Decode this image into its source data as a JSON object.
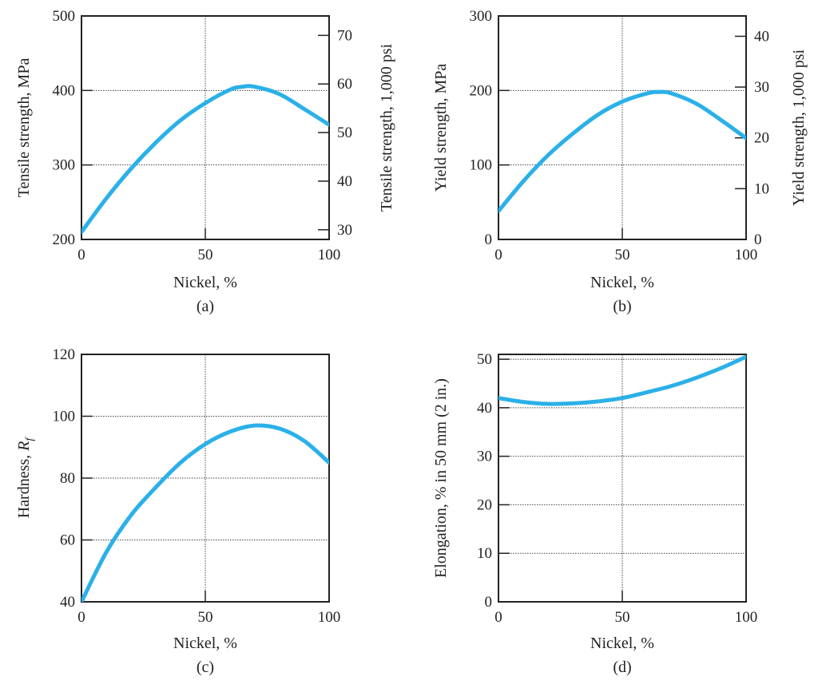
{
  "chart_data": [
    {
      "type": "line",
      "caption": "(a)",
      "xlabel": "Nickel, %",
      "ylabel": "Tensile strength, MPa",
      "y2label": "Tensile strength, 1,000 psi",
      "xlim": [
        0,
        100
      ],
      "ylim": [
        200,
        500
      ],
      "y2lim": [
        28,
        74
      ],
      "xticks": [
        0,
        50,
        100
      ],
      "yticks": [
        200,
        300,
        400,
        500
      ],
      "y2ticks": [
        30,
        40,
        50,
        60,
        70
      ],
      "grid": true,
      "color": "#2bb0e8",
      "series": [
        {
          "x": [
            0,
            10,
            20,
            30,
            40,
            50,
            60,
            65,
            70,
            80,
            90,
            100
          ],
          "y": [
            210,
            255,
            295,
            330,
            360,
            383,
            401,
            405,
            405,
            395,
            375,
            354
          ]
        }
      ]
    },
    {
      "type": "line",
      "caption": "(b)",
      "xlabel": "Nickel, %",
      "ylabel": "Yield strength, MPa",
      "y2label": "Yield strength, 1,000 psi",
      "xlim": [
        0,
        100
      ],
      "ylim": [
        0,
        300
      ],
      "y2lim": [
        0,
        44
      ],
      "xticks": [
        0,
        50,
        100
      ],
      "yticks": [
        0,
        100,
        200,
        300
      ],
      "y2ticks": [
        0,
        10,
        20,
        30,
        40
      ],
      "grid": true,
      "color": "#2bb0e8",
      "series": [
        {
          "x": [
            0,
            10,
            20,
            30,
            40,
            50,
            60,
            65,
            70,
            80,
            90,
            100
          ],
          "y": [
            38,
            78,
            113,
            142,
            167,
            185,
            196,
            198,
            196,
            182,
            160,
            136
          ]
        }
      ]
    },
    {
      "type": "line",
      "caption": "(c)",
      "xlabel": "Nickel, %",
      "ylabel_main": "Hardness, ",
      "ylabel_symbol": "R",
      "ylabel_sub": "f",
      "xlim": [
        0,
        100
      ],
      "ylim": [
        40,
        120
      ],
      "xticks": [
        0,
        50,
        100
      ],
      "yticks": [
        40,
        60,
        80,
        100,
        120
      ],
      "grid": true,
      "color": "#2bb0e8",
      "series": [
        {
          "x": [
            0,
            10,
            20,
            30,
            40,
            50,
            60,
            70,
            80,
            90,
            100
          ],
          "y": [
            40,
            56,
            68,
            77,
            85,
            91,
            95,
            97,
            96,
            92,
            85
          ]
        }
      ]
    },
    {
      "type": "line",
      "caption": "(d)",
      "xlabel": "Nickel, %",
      "ylabel": "Elongation, % in 50 mm (2 in.)",
      "xlim": [
        0,
        100
      ],
      "ylim": [
        0,
        51
      ],
      "xticks": [
        0,
        50,
        100
      ],
      "yticks": [
        0,
        10,
        20,
        30,
        40,
        50
      ],
      "grid": true,
      "color": "#2bb0e8",
      "series": [
        {
          "x": [
            0,
            10,
            20,
            30,
            40,
            50,
            60,
            70,
            80,
            90,
            100
          ],
          "y": [
            42,
            41.2,
            40.8,
            40.9,
            41.3,
            42,
            43.2,
            44.5,
            46.2,
            48.2,
            50.5
          ]
        }
      ]
    }
  ]
}
